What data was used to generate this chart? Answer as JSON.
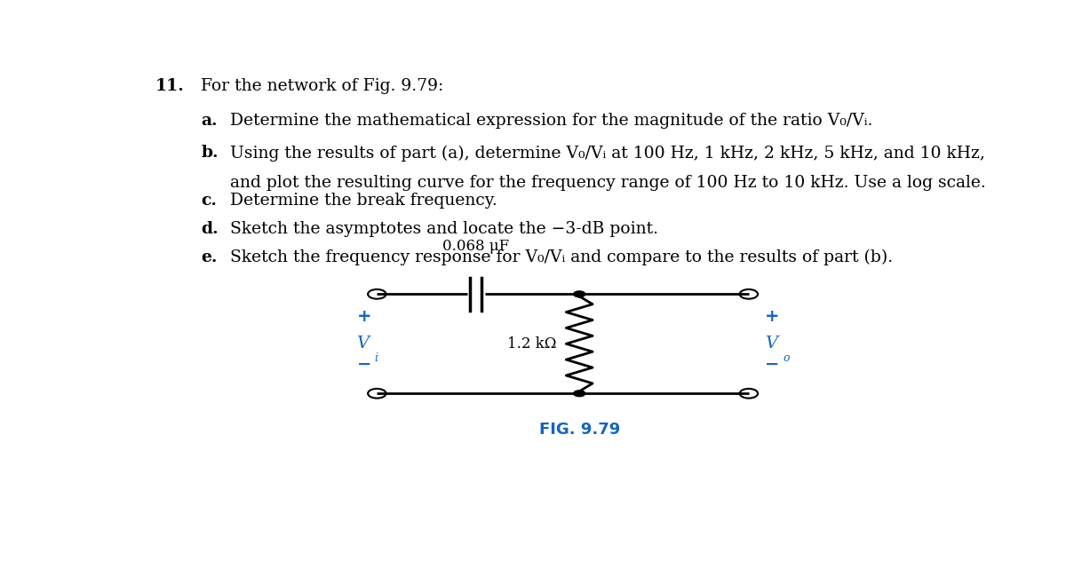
{
  "title_number": "11.",
  "title_text": "For the network of Fig. 9.79:",
  "items": [
    {
      "label": "a.",
      "text": "Determine the mathematical expression for the magnitude of the ratio V₀/Vᵢ."
    },
    {
      "label": "b.",
      "text": "Using the results of part (a), determine V₀/Vᵢ at 100 Hz, 1 kHz, 2 kHz, 5 kHz, and 10 kHz,\nand plot the resulting curve for the frequency range of 100 Hz to 10 kHz. Use a log scale."
    },
    {
      "label": "c.",
      "text": "Determine the break frequency."
    },
    {
      "label": "d.",
      "text": "Sketch the asymptotes and locate the −3-dB point."
    },
    {
      "label": "e.",
      "text": "Sketch the frequency response for V₀/Vᵢ and compare to the results of part (b)."
    }
  ],
  "cap_label": "0.068 μF",
  "res_label": "1.2 kΩ",
  "vi_label": "V",
  "vi_sub": "i",
  "vo_label": "V",
  "vo_sub": "o",
  "fig_label": "FIG. 9.79",
  "plus_color": "#1565c0",
  "minus_color": "#1565c0",
  "vi_color": "#1565c0",
  "vo_color": "#1565c0",
  "fig_label_color": "#1565c0",
  "background_color": "#ffffff",
  "text_color": "#000000",
  "font_size_main": 13.5,
  "line_width": 2.0
}
